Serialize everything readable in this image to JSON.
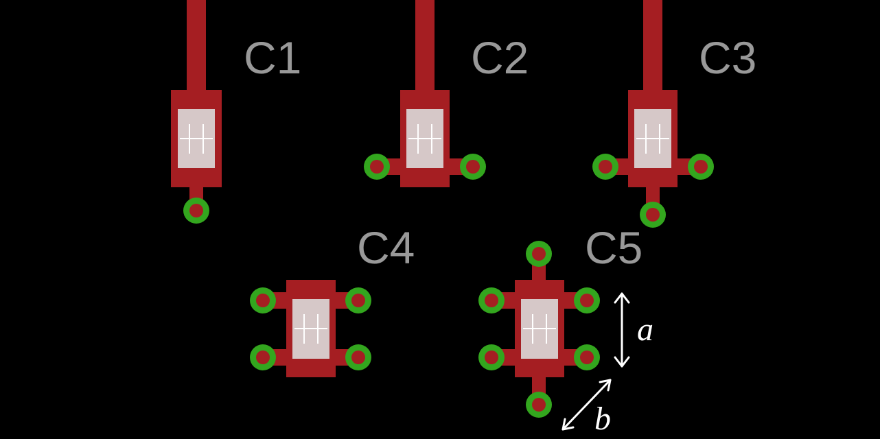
{
  "colors": {
    "background": "#000000",
    "copper": "#a51e22",
    "pad": "#d6c8c8",
    "pad_cross": "#ffffff",
    "via_ring": "#33a61e",
    "via_hole": "#a51e22",
    "label": "#999999",
    "annotation": "#ffffff"
  },
  "components": [
    {
      "id": "c1",
      "label": "C1",
      "vias": [
        "bottom"
      ],
      "trace_top": true
    },
    {
      "id": "c2",
      "label": "C2",
      "vias": [
        "left",
        "right"
      ],
      "trace_top": true
    },
    {
      "id": "c3",
      "label": "C3",
      "vias": [
        "left",
        "right",
        "bottom"
      ],
      "trace_top": true
    },
    {
      "id": "c4",
      "label": "C4",
      "vias": [
        "top-left",
        "top-right",
        "bottom-left",
        "bottom-right"
      ],
      "trace_top": false
    },
    {
      "id": "c5",
      "label": "C5",
      "vias": [
        "top",
        "top-left",
        "top-right",
        "bottom-left",
        "bottom-right",
        "bottom"
      ],
      "trace_top": false
    }
  ],
  "annotations": {
    "a": "a",
    "b": "b"
  }
}
